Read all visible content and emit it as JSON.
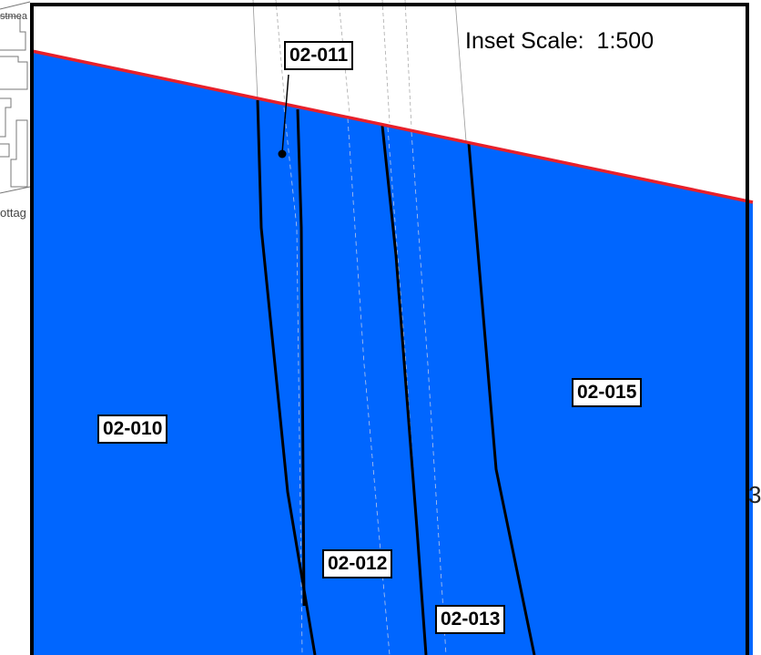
{
  "inset": {
    "scale_label": "Inset Scale:",
    "scale_value": "1:500"
  },
  "colors": {
    "plot_fill": "#0066ff",
    "boundary_line": "#e8202a",
    "frame": "#000000",
    "background": "#ffffff"
  },
  "parcels": [
    {
      "id": "02-010"
    },
    {
      "id": "02-011"
    },
    {
      "id": "02-012"
    },
    {
      "id": "02-013"
    },
    {
      "id": "02-015"
    }
  ],
  "background_text": {
    "top_left": "stmea",
    "left_edge": "ottag",
    "right_edge": "3"
  }
}
